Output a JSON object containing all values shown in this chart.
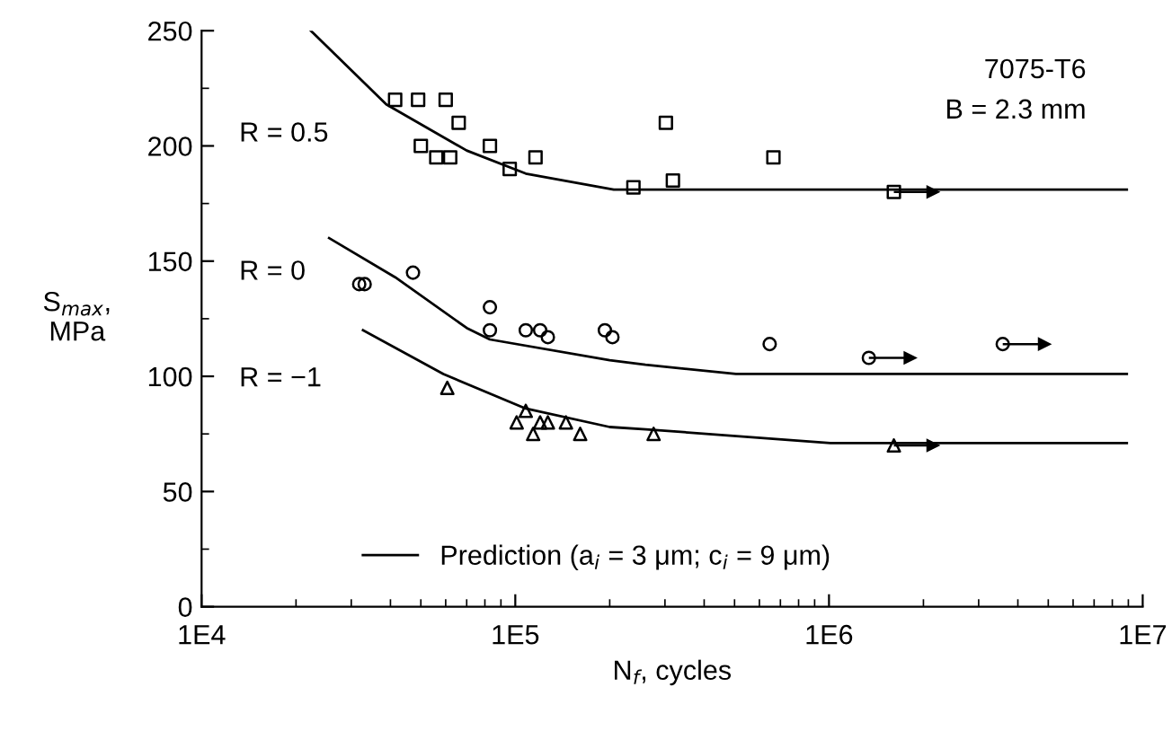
{
  "chart_data": {
    "type": "scatter",
    "xlabel": "N$_{f}$, cycles",
    "ylabel": "S$_{max}$,\nMPa",
    "log": "x",
    "xlim": [
      10000,
      10000000
    ],
    "ylim": [
      0,
      250
    ],
    "xticks": [
      {
        "value": 10000,
        "label": "1E4"
      },
      {
        "value": 100000,
        "label": "1E5"
      },
      {
        "value": 1000000,
        "label": "1E6"
      },
      {
        "value": 10000000,
        "label": "1E7"
      }
    ],
    "yticks": [
      0,
      50,
      100,
      150,
      200,
      250
    ],
    "grid": false,
    "legend": "bottom",
    "annotations": [
      "7075-T6",
      "B = 2.3 mm",
      "R = 0.5",
      "R = 0",
      "R = −1"
    ],
    "series": [
      {
        "type": "line",
        "name": "Prediction (a$_{i}$ = 3 μm; c$_{i}$ = 9 μm)",
        "color": "#000000",
        "marker": "none",
        "x": [
          22300,
          38800,
          70000,
          108000,
          206000,
          8900000
        ],
        "values": [
          250,
          218,
          198,
          188,
          181,
          181
        ]
      },
      {
        "type": "line",
        "color": "#000000",
        "marker": "none",
        "x": [
          25500,
          41400,
          70000,
          83000,
          200000,
          260000,
          505000,
          8900000
        ],
        "values": [
          160,
          143,
          121,
          116,
          107,
          105,
          101,
          101
        ]
      },
      {
        "type": "line",
        "color": "#000000",
        "marker": "none",
        "x": [
          32700,
          59000,
          108000,
          200000,
          261000,
          1010000,
          8900000
        ],
        "values": [
          120,
          101,
          86,
          78,
          77,
          71,
          71
        ]
      },
      {
        "type": "scatter",
        "color": "#000000",
        "marker": "square",
        "x": [
          41400,
          49000,
          60000,
          66000,
          50000,
          56000,
          62000,
          83000,
          96000,
          116000,
          238000,
          318000,
          302000,
          665000,
          1610000
        ],
        "values": [
          220,
          220,
          220,
          210,
          200,
          195,
          195,
          200,
          190,
          195,
          182,
          185,
          210,
          195,
          180
        ],
        "xerrors": [
          null,
          null,
          null,
          null,
          null,
          null,
          null,
          null,
          null,
          null,
          null,
          null,
          null,
          null,
          [
            1610000,
            2140000
          ]
        ]
      },
      {
        "type": "scatter",
        "color": "#000000",
        "marker": "circle",
        "x": [
          31800,
          33100,
          47200,
          83000,
          83000,
          108000,
          120000,
          127000,
          193000,
          204000,
          647000,
          1340000,
          3580000
        ],
        "values": [
          140,
          140,
          145,
          130,
          120,
          120,
          120,
          117,
          120,
          117,
          114,
          108,
          114
        ],
        "xerrors": [
          null,
          null,
          null,
          null,
          null,
          null,
          null,
          null,
          null,
          null,
          null,
          [
            1340000,
            1810000
          ],
          [
            3580000,
            4850000
          ]
        ]
      },
      {
        "type": "scatter",
        "color": "#000000",
        "marker": "triangle",
        "x": [
          60700,
          101000,
          108000,
          114000,
          120000,
          127000,
          145000,
          161000,
          276000,
          1610000
        ],
        "values": [
          95,
          80,
          85,
          75,
          80,
          80,
          80,
          75,
          75,
          70
        ],
        "xerrors": [
          null,
          null,
          null,
          null,
          null,
          null,
          null,
          null,
          null,
          [
            1610000,
            2140000
          ]
        ]
      }
    ]
  }
}
